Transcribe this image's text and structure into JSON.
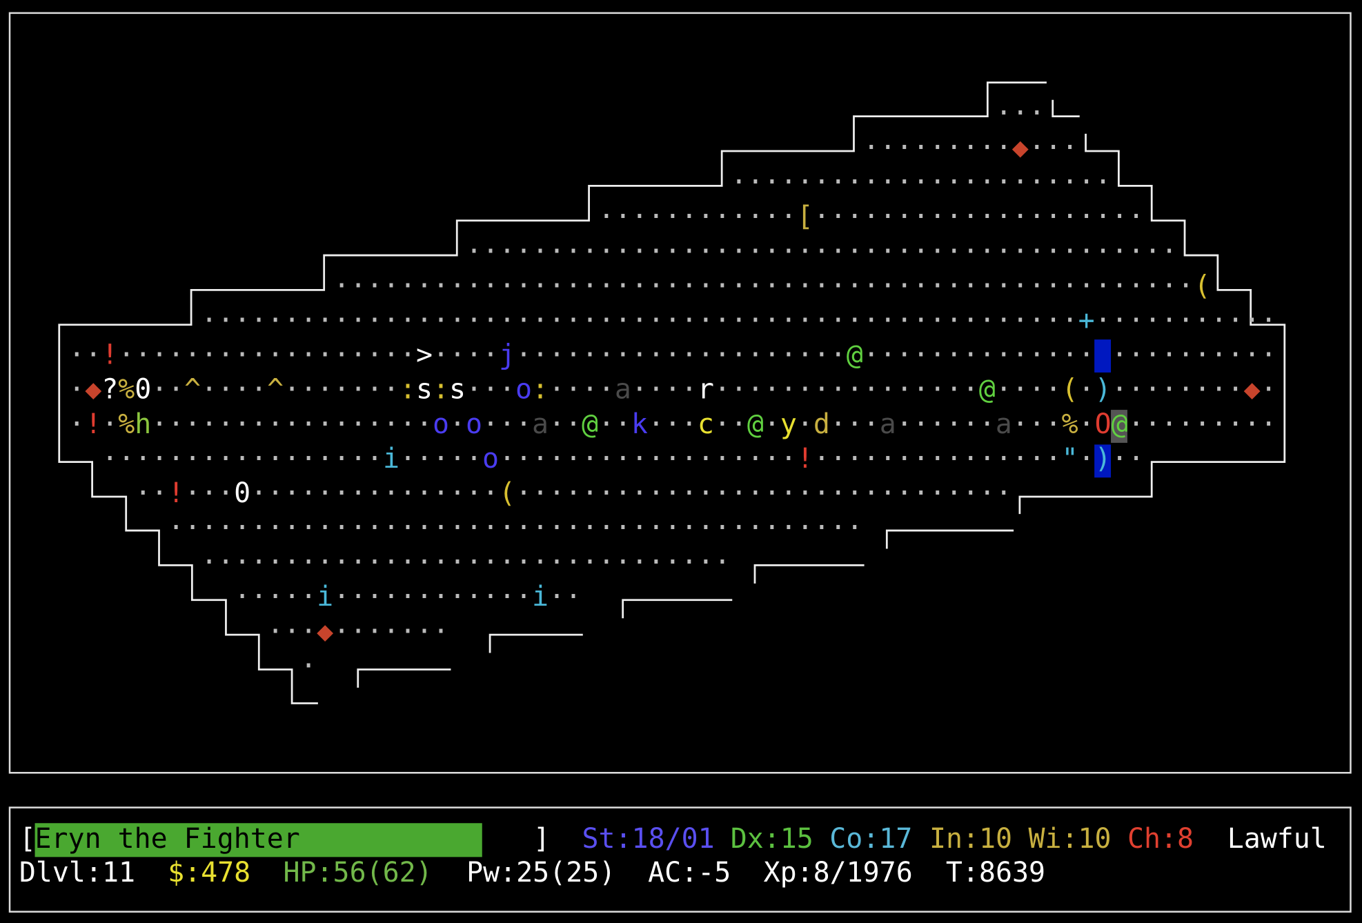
{
  "map": {
    "rows": [
      "                                                            ···",
      "                                                    ·········◆···",
      "                                            ·······················",
      "                                    ············[····················",
      "                            ···········································",
      "                    ····················································(",
      "            ·····················································+···········",
      "    ··!··················>····j····················@·············· ··········",
      "    ·◆?%0··^····^·······:s:s···o:····a····r················@····(·)········◆·",
      "    ·!·%h·················o·o···a··@··k···c··@·y·d···a······a···%·O@·········",
      "      ·················i·····o··················!···············\"·)··",
      "        ··!···0···············(······························",
      "          ··········································",
      "            ································",
      "              ·····i············i··",
      "                ···◆·······",
      "                  ·"
    ]
  },
  "status": {
    "name_highlight": "#4aa830",
    "line1": [
      {
        "text": "[",
        "color": "#ffffff"
      },
      {
        "text": "Eryn the Fighter",
        "color": "#000000"
      },
      {
        "text": "]",
        "color": "#ffffff"
      },
      {
        "text": "St:18/01",
        "color": "#5a4ff0"
      },
      {
        "text": "Dx:15",
        "color": "#5cc040"
      },
      {
        "text": "Co:17",
        "color": "#5ab8d8"
      },
      {
        "text": "In:10",
        "color": "#c8b040"
      },
      {
        "text": "Wi:10",
        "color": "#c8b040"
      },
      {
        "text": "Ch:8",
        "color": "#e04030"
      },
      {
        "text": "Lawful",
        "color": "#ffffff"
      }
    ],
    "line2": [
      {
        "text": "Dlvl:11",
        "color": "#ffffff"
      },
      {
        "text": "$:478",
        "color": "#e8e030"
      },
      {
        "text": "HP:56(62)",
        "color": "#72b84a"
      },
      {
        "text": "Pw:25(25)",
        "color": "#ffffff"
      },
      {
        "text": "AC:-5",
        "color": "#ffffff"
      },
      {
        "text": "Xp:8/1976",
        "color": "#ffffff"
      },
      {
        "text": "T:8639",
        "color": "#ffffff"
      }
    ]
  }
}
